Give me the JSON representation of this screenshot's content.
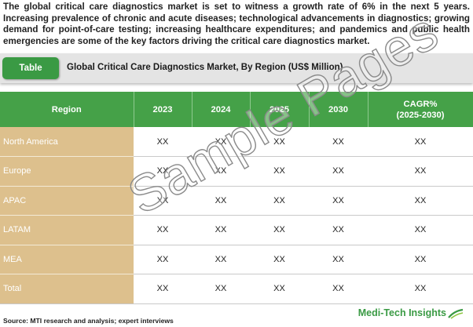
{
  "intro": "The global critical care diagnostics market is set to witness a growth rate of 6% in the next 5 years. Increasing prevalence of chronic and acute diseases; technological advancements in diagnostics; growing demand for point-of-care testing; increasing healthcare expenditures; and pandemics and public health emergencies are some of the key factors driving the critical care diagnostics market.",
  "title_bar": {
    "tag": "Table",
    "title": "Global Critical Care Diagnostics Market, By Region (US$ Million)"
  },
  "table": {
    "headers": {
      "region": "Region",
      "y2023": "2023",
      "y2024": "2024",
      "y2025": "2025",
      "y2030": "2030",
      "cagr_line1": "CAGR%",
      "cagr_line2": "(2025-2030)"
    },
    "rows": [
      {
        "region": "North America",
        "c1": "XX",
        "c2": "XX",
        "c3": "XX",
        "c4": "XX",
        "c5": "XX"
      },
      {
        "region": "Europe",
        "c1": "XX",
        "c2": "XX",
        "c3": "XX",
        "c4": "XX",
        "c5": "XX"
      },
      {
        "region": "APAC",
        "c1": "XX",
        "c2": "XX",
        "c3": "XX",
        "c4": "XX",
        "c5": "XX"
      },
      {
        "region": "LATAM",
        "c1": "XX",
        "c2": "XX",
        "c3": "XX",
        "c4": "XX",
        "c5": "XX"
      },
      {
        "region": "MEA",
        "c1": "XX",
        "c2": "XX",
        "c3": "XX",
        "c4": "XX",
        "c5": "XX"
      },
      {
        "region": "Total",
        "c1": "XX",
        "c2": "XX",
        "c3": "XX",
        "c4": "XX",
        "c5": "XX"
      }
    ]
  },
  "watermark": "Sample Pages",
  "source": "Source: MTI research and analysis; expert interviews",
  "brand": "Medi-Tech Insights",
  "colors": {
    "header_green": "#45a148",
    "region_tan": "#ddc08d",
    "brand_green": "#3a9a44"
  }
}
